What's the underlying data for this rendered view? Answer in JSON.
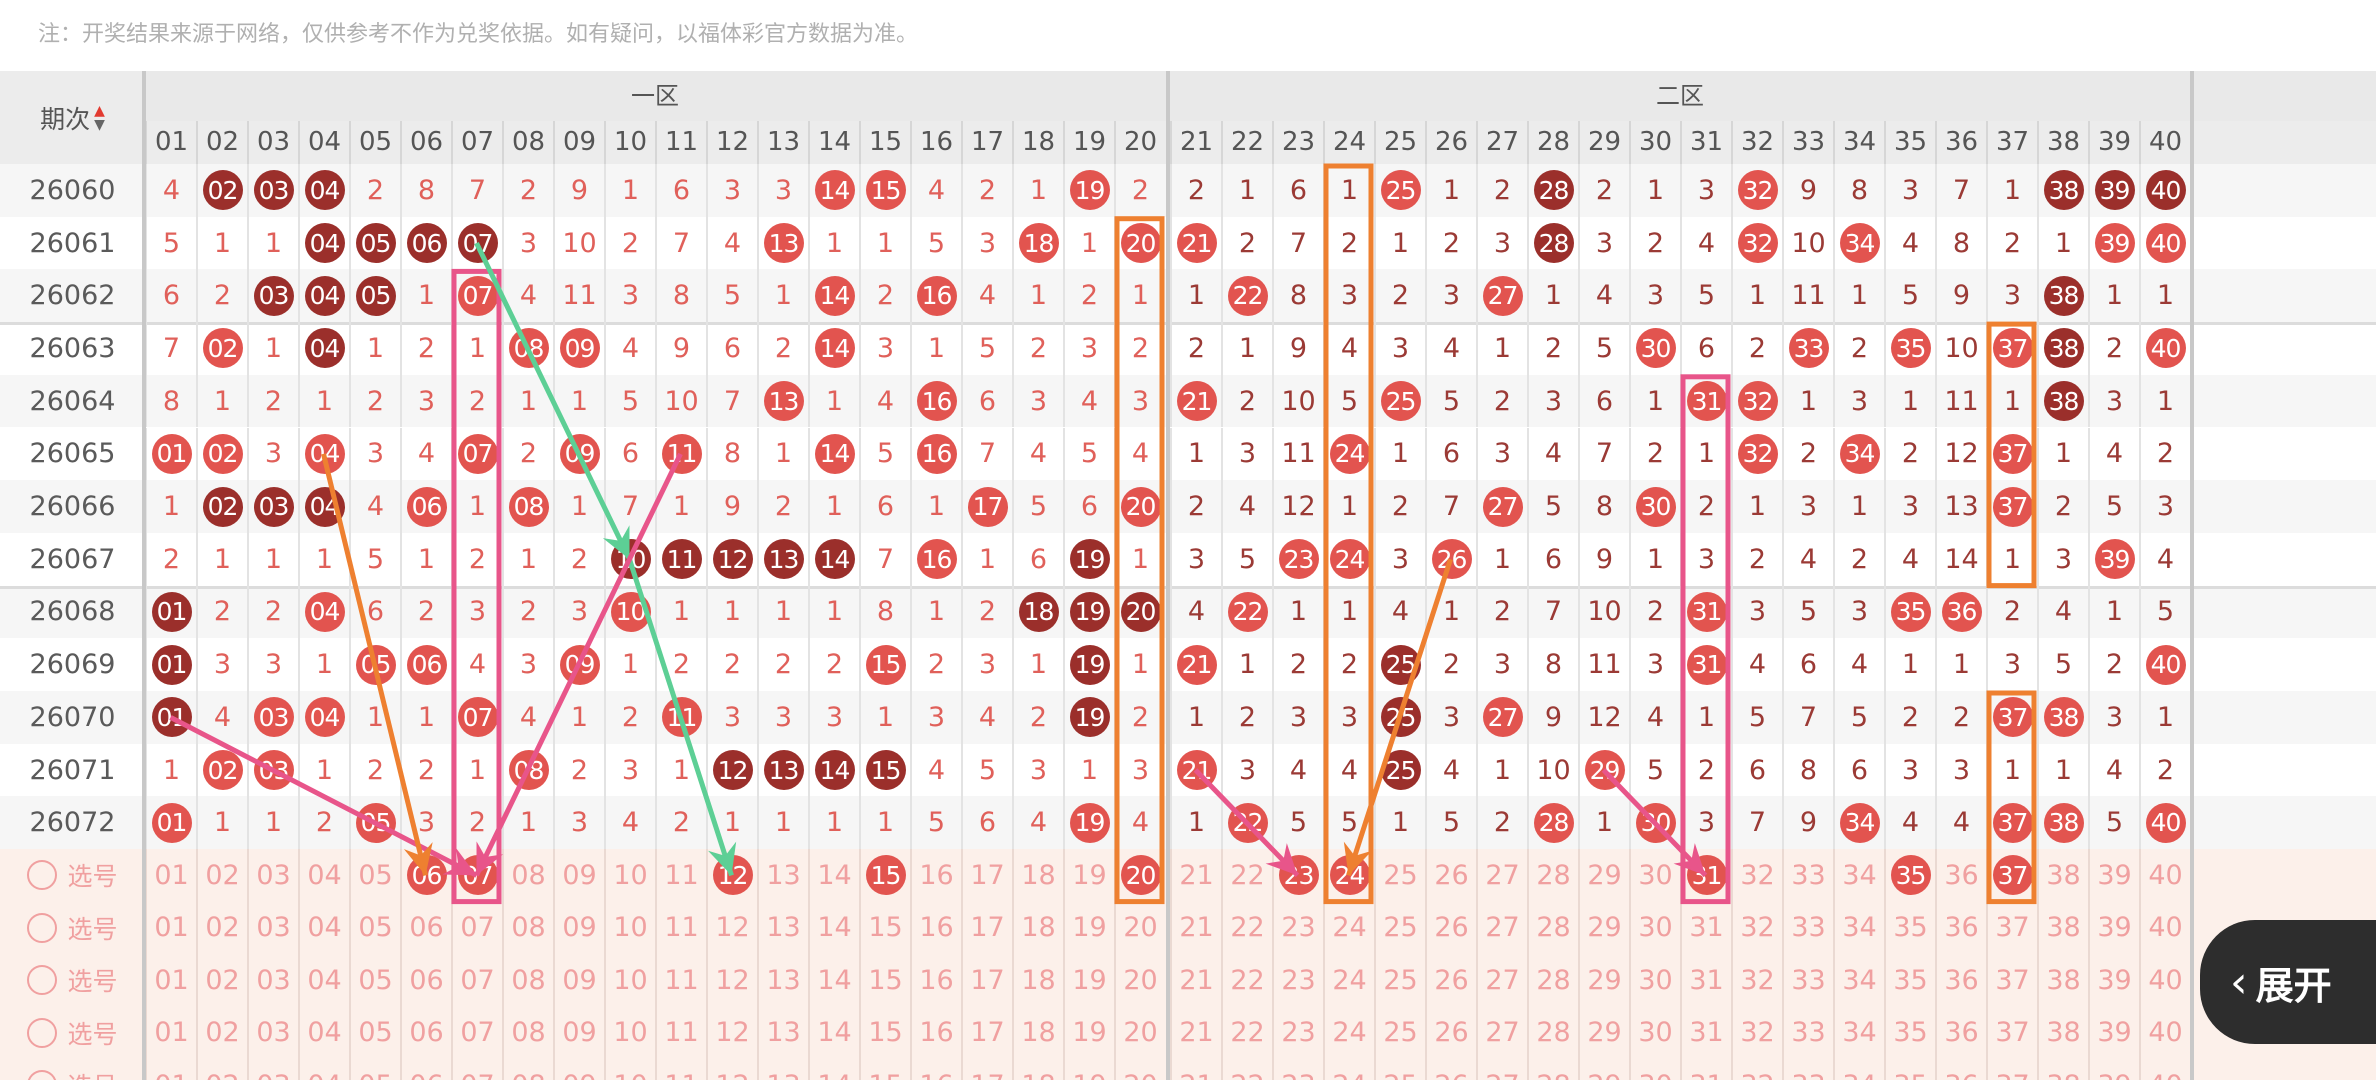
{
  "note": "注：开奖结果来源于网络，仅供参考不作为兑奖依据。如有疑问，以福体彩官方数据为准。",
  "header": {
    "issue_label": "期次",
    "sort_up_icon": "▲",
    "sort_down_icon": "▼",
    "zones": [
      {
        "label": "一区"
      },
      {
        "label": "二区"
      }
    ],
    "numbers": [
      "01",
      "02",
      "03",
      "04",
      "05",
      "06",
      "07",
      "08",
      "09",
      "10",
      "11",
      "12",
      "13",
      "14",
      "15",
      "16",
      "17",
      "18",
      "19",
      "20",
      "21",
      "22",
      "23",
      "24",
      "25",
      "26",
      "27",
      "28",
      "29",
      "30",
      "31",
      "32",
      "33",
      "34",
      "35",
      "36",
      "37",
      "38",
      "39",
      "40"
    ]
  },
  "colors": {
    "hit": "#e2544f",
    "hit_dark": "#9b2f2b",
    "miss_zone1": "#e0605a",
    "miss_zone2": "#9b3a35",
    "select_bg": "#fcf0ea",
    "select_text": "#f0a0a0",
    "pink": "#e8558a",
    "orange": "#ee8030",
    "green": "#5dcf95"
  },
  "rows": [
    {
      "issue": "26060",
      "values": [
        4,
        "02",
        "03",
        "04",
        2,
        8,
        7,
        2,
        9,
        1,
        6,
        3,
        3,
        "14",
        "15",
        4,
        2,
        1,
        "19",
        2,
        2,
        1,
        6,
        1,
        "25",
        1,
        2,
        "28",
        2,
        1,
        3,
        "32",
        9,
        8,
        3,
        7,
        1,
        "38",
        "39",
        "40"
      ],
      "dark": [
        "02",
        "03",
        "04",
        "28",
        "38",
        "39",
        "40"
      ]
    },
    {
      "issue": "26061",
      "values": [
        5,
        1,
        1,
        "04",
        "05",
        "06",
        "07",
        3,
        10,
        2,
        7,
        4,
        "13",
        1,
        1,
        5,
        3,
        "18",
        1,
        "20",
        "21",
        2,
        7,
        2,
        1,
        2,
        3,
        "28",
        3,
        2,
        4,
        "32",
        10,
        "34",
        4,
        8,
        2,
        1,
        "39",
        "40"
      ],
      "dark": [
        "04",
        "05",
        "06",
        "07",
        "28"
      ]
    },
    {
      "issue": "26062",
      "values": [
        6,
        2,
        "03",
        "04",
        "05",
        1,
        "07",
        4,
        11,
        3,
        8,
        5,
        1,
        "14",
        2,
        "16",
        4,
        1,
        2,
        1,
        1,
        "22",
        8,
        3,
        2,
        3,
        "27",
        1,
        4,
        3,
        5,
        1,
        11,
        1,
        5,
        9,
        3,
        "38",
        1,
        1
      ],
      "dark": [
        "03",
        "04",
        "05",
        "38"
      ]
    },
    {
      "issue": "26063",
      "values": [
        7,
        "02",
        1,
        "04",
        1,
        2,
        1,
        "08",
        "09",
        4,
        9,
        6,
        2,
        "14",
        3,
        1,
        5,
        2,
        3,
        2,
        2,
        1,
        9,
        4,
        3,
        4,
        1,
        2,
        5,
        "30",
        6,
        2,
        "33",
        2,
        "35",
        10,
        "37",
        "38",
        2,
        "40"
      ],
      "dark": [
        "04",
        "38"
      ]
    },
    {
      "issue": "26064",
      "values": [
        8,
        1,
        2,
        1,
        2,
        3,
        2,
        1,
        1,
        5,
        10,
        7,
        "13",
        1,
        4,
        "16",
        6,
        3,
        4,
        3,
        "21",
        2,
        10,
        5,
        "25",
        5,
        2,
        3,
        6,
        1,
        "31",
        "32",
        1,
        3,
        1,
        11,
        1,
        "38",
        3,
        1
      ],
      "dark": [
        "38"
      ]
    },
    {
      "issue": "26065",
      "values": [
        "01",
        "02",
        3,
        "04",
        3,
        4,
        "07",
        2,
        "09",
        6,
        "11",
        8,
        1,
        "14",
        5,
        "16",
        7,
        4,
        5,
        4,
        1,
        3,
        11,
        "24",
        1,
        6,
        3,
        4,
        7,
        2,
        1,
        "32",
        2,
        "34",
        2,
        12,
        "37",
        1,
        4,
        2
      ],
      "dark": []
    },
    {
      "issue": "26066",
      "values": [
        1,
        "02",
        "03",
        "04",
        4,
        "06",
        1,
        "08",
        1,
        7,
        1,
        9,
        2,
        1,
        6,
        1,
        "17",
        5,
        6,
        "20",
        2,
        4,
        12,
        1,
        2,
        7,
        "27",
        5,
        8,
        "30",
        2,
        1,
        3,
        1,
        3,
        13,
        "37",
        2,
        5,
        3
      ],
      "dark": [
        "02",
        "03",
        "04"
      ]
    },
    {
      "issue": "26067",
      "values": [
        2,
        1,
        1,
        1,
        5,
        1,
        2,
        1,
        2,
        "10",
        "11",
        "12",
        "13",
        "14",
        7,
        "16",
        1,
        6,
        "19",
        1,
        3,
        5,
        "23",
        "24",
        3,
        "26",
        1,
        6,
        9,
        1,
        3,
        2,
        4,
        2,
        4,
        14,
        1,
        3,
        "39",
        4
      ],
      "dark": [
        "10",
        "11",
        "12",
        "13",
        "14",
        "19"
      ]
    },
    {
      "issue": "26068",
      "values": [
        "01",
        2,
        2,
        "04",
        6,
        2,
        3,
        2,
        3,
        "10",
        1,
        1,
        1,
        1,
        8,
        1,
        2,
        "18",
        "19",
        "20",
        4,
        "22",
        1,
        1,
        4,
        1,
        2,
        7,
        10,
        2,
        "31",
        3,
        5,
        3,
        "35",
        "36",
        2,
        4,
        1,
        5
      ],
      "dark": [
        "01",
        "18",
        "19",
        "20"
      ]
    },
    {
      "issue": "26069",
      "values": [
        "01",
        3,
        3,
        1,
        "05",
        "06",
        4,
        3,
        "09",
        1,
        2,
        2,
        2,
        2,
        "15",
        2,
        3,
        1,
        "19",
        1,
        "21",
        1,
        2,
        2,
        "25",
        2,
        3,
        8,
        11,
        3,
        "31",
        4,
        6,
        4,
        1,
        1,
        3,
        5,
        2,
        "40"
      ],
      "dark": [
        "01",
        "19",
        "25"
      ]
    },
    {
      "issue": "26070",
      "values": [
        "01",
        4,
        "03",
        "04",
        1,
        1,
        "07",
        4,
        1,
        2,
        "11",
        3,
        3,
        3,
        1,
        3,
        4,
        2,
        "19",
        2,
        1,
        2,
        3,
        3,
        "25",
        3,
        "27",
        9,
        12,
        4,
        1,
        5,
        7,
        5,
        2,
        2,
        "37",
        "38",
        3,
        1
      ],
      "dark": [
        "01",
        "19",
        "25"
      ]
    },
    {
      "issue": "26071",
      "values": [
        1,
        "02",
        "03",
        1,
        2,
        2,
        1,
        "08",
        2,
        3,
        1,
        "12",
        "13",
        "14",
        "15",
        4,
        5,
        3,
        1,
        3,
        "21",
        3,
        4,
        4,
        "25",
        4,
        1,
        10,
        "29",
        5,
        2,
        6,
        8,
        6,
        3,
        3,
        1,
        1,
        4,
        2
      ],
      "dark": [
        "12",
        "13",
        "14",
        "15",
        "25"
      ]
    },
    {
      "issue": "26072",
      "values": [
        "01",
        1,
        1,
        2,
        "05",
        3,
        2,
        1,
        3,
        4,
        2,
        1,
        1,
        1,
        1,
        5,
        6,
        4,
        "19",
        4,
        1,
        "22",
        5,
        5,
        1,
        5,
        2,
        "28",
        1,
        "30",
        3,
        7,
        9,
        "34",
        4,
        4,
        "37",
        "38",
        5,
        "40"
      ],
      "dark": []
    }
  ],
  "select_rows": [
    {
      "label": "选号",
      "selected": [
        "06",
        "07",
        "12",
        "15",
        "20",
        "23",
        "24",
        "31",
        "35",
        "37"
      ]
    },
    {
      "label": "选号",
      "selected": []
    },
    {
      "label": "选号",
      "selected": []
    },
    {
      "label": "选号",
      "selected": []
    },
    {
      "label": "选号",
      "selected": []
    }
  ],
  "annotations": {
    "boxes": [
      {
        "color": "pink",
        "col": "07",
        "from": "26062",
        "to": "select-1"
      },
      {
        "color": "orange",
        "col": "20",
        "from": "26061",
        "to": "select-1"
      },
      {
        "color": "orange",
        "col": "24",
        "from": "26060",
        "to": "select-1"
      },
      {
        "color": "pink",
        "col": "31",
        "from": "26064",
        "to": "select-1"
      },
      {
        "color": "orange",
        "col": "37",
        "from": "26063",
        "to": "26067"
      },
      {
        "color": "orange",
        "col": "37",
        "from": "26070",
        "to": "select-1"
      }
    ],
    "arrows": [
      {
        "color": "green",
        "from": [
          "26061",
          "07"
        ],
        "to": [
          "26067",
          "10"
        ]
      },
      {
        "color": "green",
        "from": [
          "26067",
          "10"
        ],
        "to": [
          "select-1",
          "12"
        ]
      },
      {
        "color": "pink",
        "from": [
          "26065",
          "11"
        ],
        "to": [
          "select-1",
          "07"
        ]
      },
      {
        "color": "pink",
        "from": [
          "26070",
          "01"
        ],
        "to": [
          "select-1",
          "07"
        ]
      },
      {
        "color": "orange",
        "from": [
          "26065",
          "04"
        ],
        "to": [
          "select-1",
          "06"
        ]
      },
      {
        "color": "pink",
        "from": [
          "26071",
          "21"
        ],
        "to": [
          "select-1",
          "23"
        ]
      },
      {
        "color": "orange",
        "from": [
          "26067",
          "26"
        ],
        "to": [
          "select-1",
          "24"
        ]
      },
      {
        "color": "pink",
        "from": [
          "26071",
          "29"
        ],
        "to": [
          "select-1",
          "31"
        ]
      }
    ]
  },
  "expand_button": {
    "icon": "chevron-left-icon",
    "label": "展开"
  }
}
